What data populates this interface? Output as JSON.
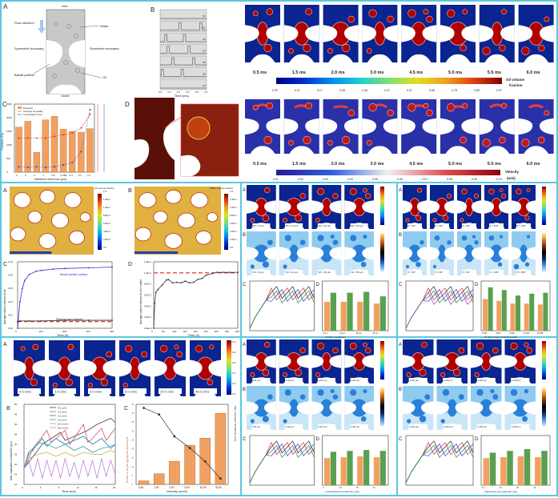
{
  "colors": {
    "frame": "#5cc8e0",
    "oil": "#b00000",
    "water": "#0a2490",
    "bar": "#f0a060",
    "bar2": "#5aa050"
  },
  "top": {
    "schematic": {
      "letter": "A",
      "inlet": "Inlet",
      "outlet": "Outlet",
      "flow": "Flow direction",
      "water": "Water",
      "sym_left": "Symmetric boundary",
      "sym_right": "Symmetric boundary",
      "basalt": "Basalt particle",
      "oil": "Oil"
    },
    "pulse": {
      "letter": "B",
      "rows": [
        "S1",
        "S2",
        "S3",
        "S4",
        "S5",
        "S6",
        "S7"
      ],
      "xticks": [
        "0.0",
        "0.2",
        "0.4",
        "0.6",
        "0.8",
        "1.0"
      ],
      "xlabel": "Time (ms)"
    },
    "mesh_letter": "D",
    "frames": [
      "0.5 ms",
      "1.5 ms",
      "2.0 ms",
      "3.0 ms",
      "4.5 ms",
      "5.0 ms",
      "5.5 ms",
      "6.0 ms"
    ],
    "oil_colorbar": {
      "ticks": [
        "0.00",
        "0.07",
        "0.17",
        "0.28",
        "0.38",
        "0.47",
        "0.57",
        "0.68",
        "0.78",
        "0.88",
        "0.97"
      ],
      "title1": "Oil volume",
      "title2": "fraction"
    },
    "vel_colorbar": {
      "ticks": [
        "0.01",
        "0.02",
        "0.03",
        "0.04",
        "0.05",
        "0.06",
        "0.07",
        "0.08",
        "0.09",
        "0.10"
      ],
      "title1": "Velocity",
      "title2": "(m/s)"
    }
  },
  "mid_left": {
    "a_letter": "A",
    "b_letter": "B",
    "oil_cb": {
      "title": "Oil volume fraction",
      "ticks": [
        "1.0",
        "1.2E-2",
        "1.0E-2",
        "8.0E-3",
        "6.0E-3",
        "4.0E-3",
        "2.0E-3",
        "0.0"
      ]
    },
    "water_cb": {
      "title": "Water volume fraction",
      "ticks": [
        "1.0",
        "1.2E-2",
        "1.0E-2",
        "8.0E-3",
        "6.0E-3",
        "4.0E-3",
        "2.0E-3",
        "0.0"
      ]
    }
  },
  "mid_mid": {
    "labels": [
      "Sh = 0 μm",
      "Sh = 10 μm",
      "Sh = 30 μm",
      "Sh = 50 μm"
    ]
  },
  "mid_right": {
    "labels": [
      "θ = 30°",
      "θ = 60°",
      "θ = 90°",
      "θ = 120°",
      "θ = 150°"
    ]
  },
  "bot_left": {
    "labels": [
      "0.5 cm/s",
      "1.0 cm/s",
      "3.0 cm/s",
      "5.0 cm/s",
      "10.0 cm/s",
      "30.0 cm/s"
    ],
    "cb_ticks": [
      "1.0",
      "0.8",
      "0.6",
      "0.4",
      "0.2",
      "0.0"
    ]
  },
  "bot_mid": {
    "labels": [
      "l=5 μm",
      "l=10 μm",
      "l=15 μm",
      "l=20 μm"
    ]
  },
  "bot_right": {
    "labels": [
      "γ=10 μm",
      "γ=20 μm",
      "γ=25 μm",
      "γ=30 μm"
    ]
  },
  "chart_data": [
    {
      "id": "top_c",
      "letter": "C",
      "type": "bar",
      "title": "",
      "categories": [
        "4",
        "3",
        "2",
        "1",
        "0.5",
        "0.368",
        "0.3",
        "0.2",
        "0.1"
      ],
      "values": [
        1650,
        1870,
        730,
        1920,
        2050,
        1580,
        1500,
        1460,
        1600
      ],
      "line": [
        1.2,
        1.2,
        1.2,
        1.2,
        1.21,
        1.22,
        1.23,
        1.26,
        1.34
      ],
      "line2": [
        0.05,
        0.04,
        0.05,
        0.04,
        0.05,
        0.08,
        0.12,
        0.3,
        1.0
      ],
      "xlabel": "Maximum mesh size (μm)",
      "ylabel": "Pressure (Pa)",
      "ylim": [
        0,
        2500
      ],
      "yticks": [
        "0",
        "500",
        "1000",
        "1500",
        "2000",
        "2500"
      ],
      "legend": [
        "Pressure",
        "Average oil quality",
        "Computation time"
      ]
    },
    {
      "id": "mid_c",
      "letter": "C",
      "type": "line",
      "xlabel": "Time (s)",
      "ylabel": "Average volume fraction of oil",
      "xlim": [
        0,
        400
      ],
      "ylim": [
        0,
        0.1
      ],
      "xticks": [
        "0",
        "100",
        "200",
        "300",
        "400"
      ],
      "yticks": [
        "0.00",
        "0.02",
        "0.04",
        "0.06",
        "0.08",
        "0.10"
      ],
      "annotations": [
        "Basalt particle surface",
        "Particle pore channel"
      ],
      "series": [
        {
          "name": "Basalt particle surface",
          "x": [
            0,
            10,
            20,
            30,
            50,
            80,
            100,
            150,
            200,
            300,
            400
          ],
          "y": [
            0,
            0.04,
            0.06,
            0.072,
            0.081,
            0.086,
            0.087,
            0.089,
            0.09,
            0.091,
            0.092
          ]
        },
        {
          "name": "Particle pore channel",
          "x": [
            0,
            10,
            50,
            100,
            200,
            300,
            400
          ],
          "y": [
            0.01,
            0.011,
            0.011,
            0.011,
            0.012,
            0.012,
            0.012
          ]
        }
      ],
      "reference": 0.01
    },
    {
      "id": "mid_d",
      "letter": "D",
      "type": "line",
      "xlabel": "Time (s)",
      "ylabel": "Average volume fraction of oil in outlet",
      "xlim": [
        0,
        400
      ],
      "ylim": [
        0,
        0.012
      ],
      "xticks": [
        "0",
        "50",
        "100",
        "150",
        "200",
        "250",
        "300",
        "350",
        "400"
      ],
      "yticks": [
        "0.0E+0",
        "2.0E-3",
        "4.0E-3",
        "6.0E-3",
        "8.0E-3",
        "1.0E-2",
        "1.2E-2"
      ],
      "series": [
        {
          "name": "outlet",
          "x": [
            0,
            5,
            10,
            20,
            40,
            60,
            70,
            90,
            110,
            130,
            150,
            170,
            190,
            210,
            230,
            250,
            280,
            300,
            330,
            360,
            400
          ],
          "y": [
            0,
            0.0045,
            0.0065,
            0.007,
            0.0078,
            0.0087,
            0.0088,
            0.0082,
            0.0083,
            0.0082,
            0.0085,
            0.0082,
            0.0083,
            0.0088,
            0.009,
            0.0096,
            0.0099,
            0.0101,
            0.0101,
            0.0101,
            0.0101
          ]
        }
      ],
      "reference": 0.01
    },
    {
      "id": "bot_b",
      "letter": "B",
      "type": "line",
      "xlabel": "Time (ms)",
      "ylabel": "Max. equivalent oil diameter (μm)",
      "xlim": [
        0,
        20
      ],
      "ylim": [
        10,
        50
      ],
      "xticks": [
        "0",
        "4",
        "8",
        "12",
        "16",
        "20"
      ],
      "yticks": [
        "10",
        "15",
        "20",
        "25",
        "30",
        "35",
        "40",
        "45",
        "50"
      ],
      "legend": [
        "0.5 cm/s",
        "1.0 cm/s",
        "3.0 cm/s",
        "5.0 cm/s",
        "10.0 cm/s",
        "30.0 cm/s"
      ],
      "series": [
        {
          "name": "0.5 cm/s",
          "color": "#444",
          "x": [
            0,
            2,
            4,
            6,
            8,
            9,
            10,
            12,
            14,
            16,
            18,
            19,
            20
          ],
          "y": [
            18,
            24,
            30,
            33,
            36,
            32,
            33,
            35,
            37,
            40,
            42,
            43,
            41
          ]
        },
        {
          "name": "1.0 cm/s",
          "color": "#e05060",
          "x": [
            0,
            2,
            3,
            5,
            6,
            8,
            9,
            10,
            11,
            13,
            14,
            15,
            17,
            18,
            19,
            20
          ],
          "y": [
            18,
            28,
            31,
            37,
            31,
            35,
            37,
            30,
            33,
            40,
            31,
            33,
            38,
            32,
            35,
            38
          ]
        },
        {
          "name": "3.0 cm/s",
          "color": "#3070c0",
          "x": [
            0,
            1,
            3,
            4,
            5,
            7,
            9,
            11,
            13,
            15,
            17,
            19,
            20
          ],
          "y": [
            18,
            26,
            30,
            33,
            29,
            33,
            30,
            32,
            34,
            30,
            33,
            28,
            30
          ]
        },
        {
          "name": "5.0 cm/s",
          "color": "#30a0a0",
          "x": [
            0,
            1,
            2,
            3,
            5,
            7,
            9,
            11,
            13,
            15,
            17,
            19,
            20
          ],
          "y": [
            18,
            25,
            27,
            31,
            30,
            28,
            30,
            27,
            29,
            26,
            28,
            29,
            30
          ]
        },
        {
          "name": "10.0 cm/s",
          "color": "#d0b030",
          "x": [
            0,
            1,
            3,
            5,
            7,
            9,
            11,
            13,
            15,
            17,
            19,
            20
          ],
          "y": [
            18,
            23,
            25,
            26,
            24,
            26,
            24,
            26,
            25,
            25,
            27,
            26
          ]
        },
        {
          "name": "30.0 cm/s",
          "color": "#c080e0",
          "x": [
            0,
            1,
            2,
            3,
            4,
            5,
            6,
            7,
            8,
            9,
            10,
            11,
            12,
            13,
            14,
            15,
            16,
            17,
            18,
            19,
            20
          ],
          "y": [
            18,
            22,
            14,
            23,
            13,
            22,
            14,
            22,
            13,
            23,
            14,
            21,
            13,
            22,
            14,
            22,
            13,
            23,
            14,
            22,
            15
          ]
        }
      ]
    },
    {
      "id": "bot_c",
      "letter": "C",
      "type": "bar",
      "categories": [
        "0.50",
        "1.00",
        "3.00",
        "5.00",
        "10.00",
        "30.00"
      ],
      "values": [
        2,
        6,
        13,
        22,
        26,
        40
      ],
      "line": [
        43,
        41.2,
        35.2,
        32,
        28.3,
        23.6
      ],
      "xlabel": "Velocity (cm/s)",
      "ylabel": "Number of droplet aggregation-detachment",
      "ylabel2": "Max. equivalent oil diameter (μm)",
      "ylim": [
        0,
        45
      ],
      "ylim2": [
        22,
        44
      ],
      "yticks": [
        "0",
        "5",
        "10",
        "15",
        "20",
        "25",
        "30",
        "35",
        "40",
        "45"
      ]
    },
    {
      "id": "mm_d",
      "letter": "D",
      "type": "bar",
      "categories": [
        "0 μm",
        "10 μm",
        "30 μm",
        "50 μm"
      ],
      "values": [
        32,
        32,
        32,
        30
      ],
      "values2": [
        42,
        42,
        43,
        38
      ],
      "xlabel": "Surface roughness"
    },
    {
      "id": "mr_d",
      "letter": "D",
      "type": "bar",
      "categories": [
        "θ=30°",
        "θ=60°",
        "θ=90°",
        "θ=120°",
        "θ=150°"
      ],
      "values": [
        35,
        33,
        30,
        30,
        29
      ],
      "values2": [
        48,
        45,
        39,
        41,
        42
      ],
      "xlabel": "Contact angle of basalt particle"
    },
    {
      "id": "bm_d",
      "letter": "D",
      "type": "bar",
      "categories": [
        "5",
        "10",
        "15",
        "20"
      ],
      "values": [
        30,
        31,
        32,
        31
      ],
      "values2": [
        37,
        38,
        39,
        38
      ],
      "xlabel": "Longitudinal pore diameter (μm)"
    },
    {
      "id": "br_d",
      "letter": "D",
      "type": "bar",
      "categories": [
        "10",
        "20",
        "25",
        "30"
      ],
      "values": [
        30,
        31,
        32,
        31
      ],
      "values2": [
        36,
        38,
        40,
        38
      ],
      "xlabel": "Transverse pore diameter (μm)"
    }
  ]
}
